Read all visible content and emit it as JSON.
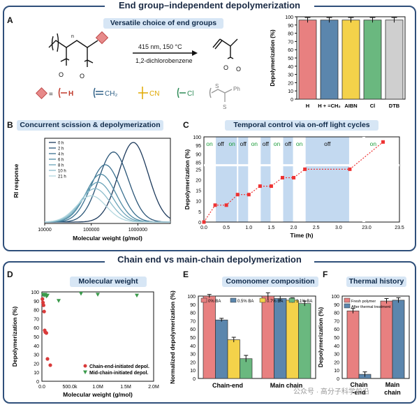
{
  "top_title": "End group–independent depolymerization",
  "bottom_title": "Chain end vs main-chain depolymerization",
  "panel_a": {
    "letter": "A",
    "pill": "Versatile choice of end groups",
    "reaction_line1": "415 nm, 150 °C",
    "reaction_line2": "1,2-dichlorobenzene",
    "end_groups": [
      "H",
      "CH₂",
      "CN",
      "Cl"
    ],
    "end_group_prefix": "=",
    "dtb_labels": [
      "S",
      "Ph",
      "S"
    ],
    "colors": {
      "red": "#e06b6b",
      "blue": "#4a7fa8",
      "yellow": "#f0c419",
      "green": "#3a9a5b"
    }
  },
  "panel_b": {
    "letter": "B",
    "pill": "Concurrent scission & depolymerization"
  },
  "panel_c": {
    "letter": "C",
    "pill": "Temporal control via on-off light cycles"
  },
  "panel_d": {
    "letter": "D",
    "pill": "Molecular weight"
  },
  "panel_e": {
    "letter": "E",
    "pill": "Comonomer composition"
  },
  "panel_f": {
    "letter": "F",
    "pill": "Thermal history"
  },
  "watermark": "公众号 · 高分子科学前沿",
  "chart_data": [
    {
      "id": "A",
      "type": "bar",
      "categories": [
        "H",
        "H + =CH₂",
        "AIBN",
        "Cl",
        "DTB"
      ],
      "values": [
        96,
        96,
        96,
        96,
        96
      ],
      "errors": [
        3,
        3,
        3,
        3,
        3
      ],
      "colors": [
        "#e88080",
        "#5b86ad",
        "#f4d24a",
        "#6ab87f",
        "#cfcfcf"
      ],
      "ylabel": "Depolymerization (%)",
      "ylim": [
        0,
        100
      ],
      "yticks": [
        0,
        10,
        20,
        30,
        40,
        50,
        60,
        70,
        80,
        90,
        100
      ]
    },
    {
      "id": "B",
      "type": "line",
      "xlabel": "Molecular weight (g/mol)",
      "ylabel": "RI response",
      "xscale": "log",
      "xlim": [
        10000,
        5000000
      ],
      "xticks": [
        10000,
        100000,
        1000000
      ],
      "xtick_labels": [
        "10000",
        "100000",
        "1000000"
      ],
      "series": [
        {
          "name": "0 h",
          "peak": 800000,
          "height": 1.0,
          "color": "#1d3a5c"
        },
        {
          "name": "2 h",
          "peak": 300000,
          "height": 0.88,
          "color": "#2a5577"
        },
        {
          "name": "4 h",
          "peak": 200000,
          "height": 0.72,
          "color": "#3a7090"
        },
        {
          "name": "6 h",
          "peak": 160000,
          "height": 0.6,
          "color": "#4f8aa3"
        },
        {
          "name": "8 h",
          "peak": 140000,
          "height": 0.5,
          "color": "#6aa3b8"
        },
        {
          "name": "10 h",
          "peak": 120000,
          "height": 0.42,
          "color": "#8bbccb"
        },
        {
          "name": "21 h",
          "peak": 100000,
          "height": 0.33,
          "color": "#b1d6de"
        }
      ]
    },
    {
      "id": "C",
      "type": "line",
      "xlabel": "Time (h)",
      "ylabel": "Depolymerization (%)",
      "x": [
        0,
        0.25,
        0.5,
        0.75,
        1.0,
        1.25,
        1.5,
        1.75,
        2.0,
        2.25,
        3.25,
        23.25
      ],
      "y": [
        0,
        8,
        8,
        13,
        13,
        17,
        17,
        21,
        21,
        25,
        25,
        97
      ],
      "xtick_labels": [
        "0.0",
        "0.5",
        "1.0",
        "1.5",
        "2.0",
        "2.5",
        "3.0",
        "23.0",
        "23.5"
      ],
      "ytick_labels": [
        "0",
        "5",
        "10",
        "15",
        "20",
        "25",
        "85",
        "90",
        "95",
        "100"
      ],
      "states": [
        "on",
        "off",
        "on",
        "off",
        "on",
        "off",
        "on",
        "off",
        "on",
        "off",
        "on"
      ],
      "off_intervals": [
        [
          0.25,
          0.75
        ],
        [
          0.75,
          1.0
        ],
        [
          1.25,
          1.5
        ],
        [
          1.75,
          2.0
        ],
        [
          2.25,
          3.25
        ]
      ]
    },
    {
      "id": "D",
      "type": "scatter",
      "xlabel": "Molecular weight (g/mol)",
      "ylabel": "Depolymerization (%)",
      "xlim": [
        0,
        2000000
      ],
      "ylim": [
        0,
        100
      ],
      "xtick_labels": [
        "0.0",
        "500.0k",
        "1.0M",
        "1.5M",
        "2.0M"
      ],
      "ytick_labels": [
        "0",
        "10",
        "20",
        "30",
        "40",
        "50",
        "60",
        "70",
        "80",
        "90",
        "100"
      ],
      "series": [
        {
          "name": "Chain-end-initiated depol.",
          "marker": "circle",
          "color": "#d93a3a",
          "x": [
            10000,
            20000,
            30000,
            40000,
            50000,
            60000,
            80000,
            100000,
            150000
          ],
          "y": [
            92,
            88,
            85,
            78,
            57,
            55,
            54,
            25,
            18
          ]
        },
        {
          "name": "Mid-chain-initiated depol.",
          "marker": "triangle",
          "color": "#3a9a4b",
          "x": [
            20000,
            40000,
            60000,
            80000,
            100000,
            300000,
            700000,
            1000000,
            1700000
          ],
          "y": [
            97,
            96,
            97,
            95,
            96,
            90,
            98,
            97,
            96
          ]
        }
      ]
    },
    {
      "id": "E",
      "type": "bar",
      "ylabel": "Normalized depolymerization (%)",
      "ylim": [
        0,
        100
      ],
      "categories": [
        "Chain-end",
        "Main chain"
      ],
      "ytick_labels": [
        "0",
        "10",
        "20",
        "30",
        "40",
        "50",
        "60",
        "70",
        "80",
        "90",
        "100"
      ],
      "series": [
        {
          "name": "0% BA",
          "values": [
            100,
            100
          ],
          "errors": [
            2,
            4
          ],
          "color": "#e88080"
        },
        {
          "name": "0.5% BA",
          "values": [
            71,
            97
          ],
          "errors": [
            2,
            3
          ],
          "color": "#5b86ad"
        },
        {
          "name": "0.7% BA",
          "values": [
            47,
            95
          ],
          "errors": [
            3,
            3
          ],
          "color": "#f4d24a"
        },
        {
          "name": "1.1% BA",
          "values": [
            24,
            91
          ],
          "errors": [
            4,
            3
          ],
          "color": "#6ab87f"
        }
      ]
    },
    {
      "id": "F",
      "type": "bar",
      "ylabel": "Depolymerization (%)",
      "ylim": [
        0,
        100
      ],
      "categories": [
        "Chain -end",
        "Main chain"
      ],
      "ytick_labels": [
        "0",
        "10",
        "20",
        "30",
        "40",
        "50",
        "60",
        "70",
        "80",
        "90",
        "100"
      ],
      "series": [
        {
          "name": "Fresh polymer",
          "values": [
            82,
            94
          ],
          "errors": [
            3,
            3
          ],
          "color": "#e88080"
        },
        {
          "name": "After thermal treatment",
          "values": [
            5,
            95
          ],
          "errors": [
            3,
            3
          ],
          "color": "#5b86ad"
        }
      ]
    }
  ]
}
